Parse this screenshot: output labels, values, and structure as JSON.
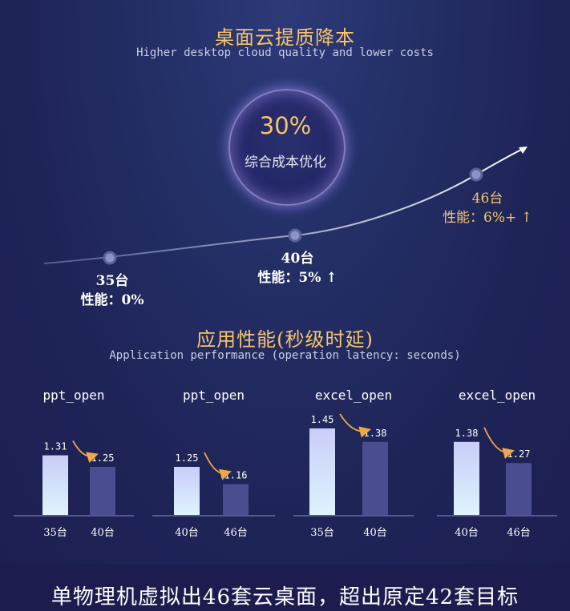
{
  "header": {
    "title": "桌面云提质降本",
    "subtitle": "Higher desktop cloud quality and lower costs"
  },
  "highlight": {
    "value": "30%",
    "label": "综合成本优化"
  },
  "trend_points": [
    {
      "count": "35台",
      "perf": "性能：0%",
      "arrow": ""
    },
    {
      "count": "40台",
      "perf": "性能：5%",
      "arrow": "↑"
    },
    {
      "count": "46台",
      "perf": "性能：6%+",
      "arrow": "↑"
    }
  ],
  "section2": {
    "title": "应用性能(秒级时延)",
    "subtitle": "Application performance (operation latency: seconds)"
  },
  "footer": {
    "text": "单物理机虚拟出46套云桌面，超出原定42套目标"
  },
  "chart_data": [
    {
      "type": "bar",
      "title": "ppt_open",
      "categories": [
        "35台",
        "40台"
      ],
      "values": [
        1.31,
        1.25
      ],
      "labels": [
        "1.31",
        "1.25"
      ]
    },
    {
      "type": "bar",
      "title": "ppt_open",
      "categories": [
        "40台",
        "46台"
      ],
      "values": [
        1.25,
        1.16
      ],
      "labels": [
        "1.25",
        "1.16"
      ]
    },
    {
      "type": "bar",
      "title": "excel_open",
      "categories": [
        "35台",
        "40台"
      ],
      "values": [
        1.45,
        1.38
      ],
      "labels": [
        "1.45",
        "1.38"
      ]
    },
    {
      "type": "bar",
      "title": "excel_open",
      "categories": [
        "40台",
        "46台"
      ],
      "values": [
        1.38,
        1.27
      ],
      "labels": [
        "1.38",
        "1.27"
      ]
    }
  ],
  "colors": {
    "accent": "#f5c56a",
    "bar_before": "#d6e4ff",
    "bar_after": "#4a4d8f",
    "background": "#1f2457"
  }
}
